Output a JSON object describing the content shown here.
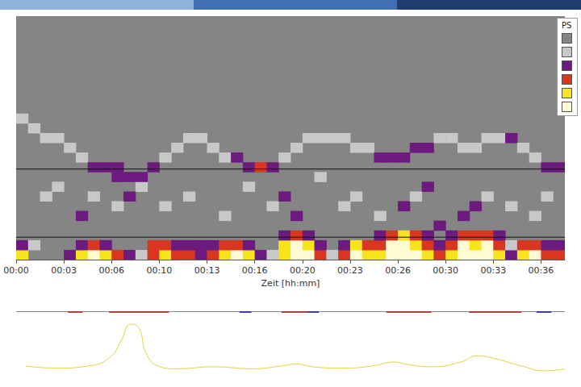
{
  "chart_data": [
    {
      "type": "heatmap",
      "x_label": "Zeit [hh:mm]",
      "legend_title": "PS",
      "legend": "top right",
      "xlim": [
        0,
        2300
      ],
      "xticks": [
        {
          "value": 0,
          "label": "00:00"
        },
        {
          "value": 200,
          "label": "00:03"
        },
        {
          "value": 400,
          "label": "00:06"
        },
        {
          "value": 600,
          "label": "00:10"
        },
        {
          "value": 800,
          "label": "00:13"
        },
        {
          "value": 1000,
          "label": "00:16"
        },
        {
          "value": 1200,
          "label": "00:20"
        },
        {
          "value": 1400,
          "label": "00:23"
        },
        {
          "value": 1600,
          "label": "00:26"
        },
        {
          "value": 1800,
          "label": "00:30"
        },
        {
          "value": 2000,
          "label": "00:33"
        },
        {
          "value": 2200,
          "label": "00:36"
        }
      ],
      "ylim": [
        0,
        25
      ],
      "tick_labels": "x",
      "cell_width": 50,
      "cell_height": 1,
      "levels": [
        0,
        1,
        2,
        3,
        4,
        5
      ],
      "level_colors": [
        "#858585",
        "#c8c8c8",
        "#6c1a7e",
        "#d9361f",
        "#f6e41c",
        "#fdfbd2"
      ],
      "bands": [
        2.3,
        9.3
      ],
      "cells": [
        [
          0,
          0,
          4
        ],
        [
          0,
          1,
          2
        ],
        [
          0,
          14,
          1
        ],
        [
          50,
          1,
          1
        ],
        [
          50,
          13,
          1
        ],
        [
          100,
          6,
          1
        ],
        [
          100,
          12,
          1
        ],
        [
          150,
          7,
          1
        ],
        [
          150,
          12,
          1
        ],
        [
          200,
          0,
          2
        ],
        [
          200,
          11,
          1
        ],
        [
          250,
          0,
          4
        ],
        [
          250,
          1,
          2
        ],
        [
          250,
          4,
          2
        ],
        [
          250,
          10,
          1
        ],
        [
          300,
          0,
          5
        ],
        [
          300,
          1,
          3
        ],
        [
          300,
          6,
          1
        ],
        [
          300,
          9,
          2
        ],
        [
          350,
          0,
          4
        ],
        [
          350,
          1,
          2
        ],
        [
          350,
          9,
          2
        ],
        [
          400,
          0,
          3
        ],
        [
          400,
          5,
          1
        ],
        [
          400,
          8,
          2
        ],
        [
          400,
          9,
          2
        ],
        [
          450,
          0,
          2
        ],
        [
          450,
          6,
          2
        ],
        [
          450,
          8,
          2
        ],
        [
          500,
          0,
          1
        ],
        [
          500,
          7,
          1
        ],
        [
          500,
          8,
          2
        ],
        [
          550,
          0,
          3
        ],
        [
          550,
          1,
          3
        ],
        [
          550,
          9,
          2
        ],
        [
          600,
          0,
          4
        ],
        [
          600,
          1,
          3
        ],
        [
          600,
          5,
          1
        ],
        [
          600,
          10,
          1
        ],
        [
          650,
          0,
          3
        ],
        [
          650,
          1,
          2
        ],
        [
          650,
          11,
          1
        ],
        [
          700,
          0,
          3
        ],
        [
          700,
          1,
          2
        ],
        [
          700,
          6,
          1
        ],
        [
          700,
          12,
          1
        ],
        [
          750,
          0,
          2
        ],
        [
          750,
          1,
          2
        ],
        [
          750,
          12,
          1
        ],
        [
          800,
          0,
          3
        ],
        [
          800,
          1,
          2
        ],
        [
          800,
          11,
          1
        ],
        [
          850,
          0,
          4
        ],
        [
          850,
          1,
          3
        ],
        [
          850,
          4,
          1
        ],
        [
          850,
          10,
          1
        ],
        [
          900,
          0,
          5
        ],
        [
          900,
          1,
          3
        ],
        [
          900,
          10,
          2
        ],
        [
          950,
          0,
          4
        ],
        [
          950,
          1,
          2
        ],
        [
          950,
          7,
          1
        ],
        [
          950,
          9,
          2
        ],
        [
          1000,
          0,
          2
        ],
        [
          1000,
          9,
          3
        ],
        [
          1050,
          0,
          1
        ],
        [
          1050,
          5,
          1
        ],
        [
          1050,
          9,
          2
        ],
        [
          1100,
          0,
          4
        ],
        [
          1100,
          1,
          4
        ],
        [
          1100,
          2,
          2
        ],
        [
          1100,
          6,
          2
        ],
        [
          1100,
          10,
          1
        ],
        [
          1150,
          0,
          5
        ],
        [
          1150,
          1,
          5
        ],
        [
          1150,
          2,
          3
        ],
        [
          1150,
          4,
          2
        ],
        [
          1150,
          11,
          1
        ],
        [
          1200,
          0,
          5
        ],
        [
          1200,
          1,
          4
        ],
        [
          1200,
          2,
          2
        ],
        [
          1200,
          12,
          1
        ],
        [
          1250,
          0,
          3
        ],
        [
          1250,
          1,
          2
        ],
        [
          1250,
          8,
          1
        ],
        [
          1250,
          12,
          1
        ],
        [
          1300,
          0,
          1
        ],
        [
          1300,
          12,
          1
        ],
        [
          1350,
          0,
          3
        ],
        [
          1350,
          1,
          2
        ],
        [
          1350,
          5,
          1
        ],
        [
          1350,
          12,
          1
        ],
        [
          1400,
          0,
          5
        ],
        [
          1400,
          1,
          4
        ],
        [
          1400,
          6,
          1
        ],
        [
          1400,
          11,
          1
        ],
        [
          1450,
          0,
          4
        ],
        [
          1450,
          1,
          3
        ],
        [
          1450,
          11,
          1
        ],
        [
          1500,
          0,
          4
        ],
        [
          1500,
          1,
          3
        ],
        [
          1500,
          2,
          2
        ],
        [
          1500,
          4,
          1
        ],
        [
          1500,
          10,
          2
        ],
        [
          1550,
          0,
          5
        ],
        [
          1550,
          1,
          5
        ],
        [
          1550,
          2,
          3
        ],
        [
          1550,
          10,
          2
        ],
        [
          1600,
          0,
          5
        ],
        [
          1600,
          1,
          5
        ],
        [
          1600,
          2,
          4
        ],
        [
          1600,
          5,
          2
        ],
        [
          1600,
          10,
          2
        ],
        [
          1650,
          0,
          5
        ],
        [
          1650,
          1,
          4
        ],
        [
          1650,
          2,
          3
        ],
        [
          1650,
          6,
          1
        ],
        [
          1650,
          11,
          2
        ],
        [
          1700,
          0,
          4
        ],
        [
          1700,
          1,
          3
        ],
        [
          1700,
          2,
          2
        ],
        [
          1700,
          7,
          2
        ],
        [
          1700,
          11,
          2
        ],
        [
          1750,
          0,
          3
        ],
        [
          1750,
          1,
          2
        ],
        [
          1750,
          3,
          2
        ],
        [
          1750,
          12,
          1
        ],
        [
          1800,
          0,
          4
        ],
        [
          1800,
          1,
          3
        ],
        [
          1800,
          2,
          2
        ],
        [
          1800,
          12,
          1
        ],
        [
          1850,
          0,
          5
        ],
        [
          1850,
          1,
          5
        ],
        [
          1850,
          2,
          3
        ],
        [
          1850,
          4,
          2
        ],
        [
          1850,
          11,
          1
        ],
        [
          1900,
          0,
          5
        ],
        [
          1900,
          1,
          4
        ],
        [
          1900,
          2,
          3
        ],
        [
          1900,
          5,
          2
        ],
        [
          1900,
          11,
          1
        ],
        [
          1950,
          0,
          5
        ],
        [
          1950,
          1,
          5
        ],
        [
          1950,
          2,
          3
        ],
        [
          1950,
          6,
          1
        ],
        [
          1950,
          12,
          1
        ],
        [
          2000,
          0,
          4
        ],
        [
          2000,
          1,
          3
        ],
        [
          2000,
          2,
          2
        ],
        [
          2000,
          12,
          1
        ],
        [
          2050,
          0,
          2
        ],
        [
          2050,
          1,
          1
        ],
        [
          2050,
          5,
          1
        ],
        [
          2050,
          12,
          2
        ],
        [
          2100,
          0,
          4
        ],
        [
          2100,
          1,
          3
        ],
        [
          2100,
          11,
          1
        ],
        [
          2150,
          0,
          5
        ],
        [
          2150,
          1,
          3
        ],
        [
          2150,
          4,
          1
        ],
        [
          2150,
          10,
          1
        ],
        [
          2200,
          0,
          3
        ],
        [
          2200,
          1,
          2
        ],
        [
          2200,
          6,
          1
        ],
        [
          2200,
          9,
          2
        ],
        [
          2250,
          0,
          3
        ],
        [
          2250,
          1,
          2
        ],
        [
          2250,
          9,
          2
        ]
      ]
    },
    {
      "type": "line",
      "xlim": [
        0,
        2300
      ],
      "ylim": [
        0,
        100
      ],
      "tick_labels": false,
      "color": "#e2d43a",
      "x": [
        40,
        170,
        300,
        390,
        440,
        480,
        515,
        545,
        595,
        670,
        830,
        990,
        1110,
        1175,
        1240,
        1365,
        1490,
        1585,
        1645,
        1740,
        1865,
        1930,
        1995,
        2120,
        2215,
        2300
      ],
      "values": [
        19,
        16,
        19,
        31,
        56,
        81,
        75,
        38,
        19,
        15,
        18,
        15,
        19,
        22,
        18,
        16,
        19,
        25,
        21,
        18,
        25,
        34,
        31,
        19,
        12,
        15
      ],
      "events": [
        {
          "start": 216,
          "end": 279,
          "color": "#b0413e"
        },
        {
          "start": 389,
          "end": 640,
          "color": "#b0413e"
        },
        {
          "start": 936,
          "end": 986,
          "color": "#3b3f9c"
        },
        {
          "start": 1112,
          "end": 1238,
          "color": "#b0413e"
        },
        {
          "start": 1222,
          "end": 1269,
          "color": "#3b3f9c"
        },
        {
          "start": 1552,
          "end": 1741,
          "color": "#b0413e"
        },
        {
          "start": 1898,
          "end": 2118,
          "color": "#b0413e"
        },
        {
          "start": 2181,
          "end": 2244,
          "color": "#3b3f9c"
        }
      ]
    }
  ]
}
